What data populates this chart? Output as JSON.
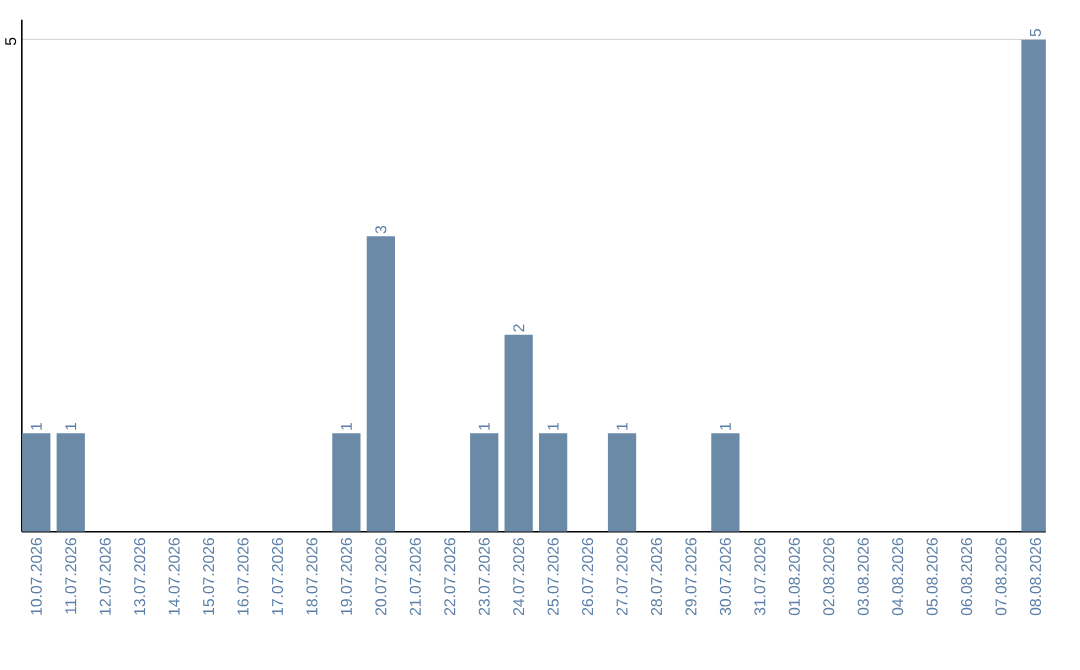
{
  "chart_data": {
    "type": "bar",
    "categories": [
      "10.07.2026",
      "11.07.2026",
      "12.07.2026",
      "13.07.2026",
      "14.07.2026",
      "15.07.2026",
      "16.07.2026",
      "17.07.2026",
      "18.07.2026",
      "19.07.2026",
      "20.07.2026",
      "21.07.2026",
      "22.07.2026",
      "23.07.2026",
      "24.07.2026",
      "25.07.2026",
      "26.07.2026",
      "27.07.2026",
      "28.07.2026",
      "29.07.2026",
      "30.07.2026",
      "31.07.2026",
      "01.08.2026",
      "02.08.2026",
      "03.08.2026",
      "04.08.2026",
      "05.08.2026",
      "06.08.2026",
      "07.08.2026",
      "08.08.2026"
    ],
    "values": [
      1,
      1,
      0,
      0,
      0,
      0,
      0,
      0,
      0,
      1,
      3,
      0,
      0,
      1,
      2,
      1,
      0,
      1,
      0,
      0,
      1,
      0,
      0,
      0,
      0,
      0,
      0,
      0,
      0,
      5
    ],
    "value_labels": [
      "1",
      "1",
      null,
      null,
      null,
      null,
      null,
      null,
      null,
      "1",
      "3",
      null,
      null,
      "1",
      "2",
      "1",
      null,
      "1",
      null,
      null,
      "1",
      null,
      null,
      null,
      null,
      null,
      null,
      null,
      null,
      "5"
    ],
    "color": "#6a8aa8",
    "ylim": [
      0,
      5.2
    ],
    "yticks": [
      5
    ],
    "grid": "y"
  }
}
